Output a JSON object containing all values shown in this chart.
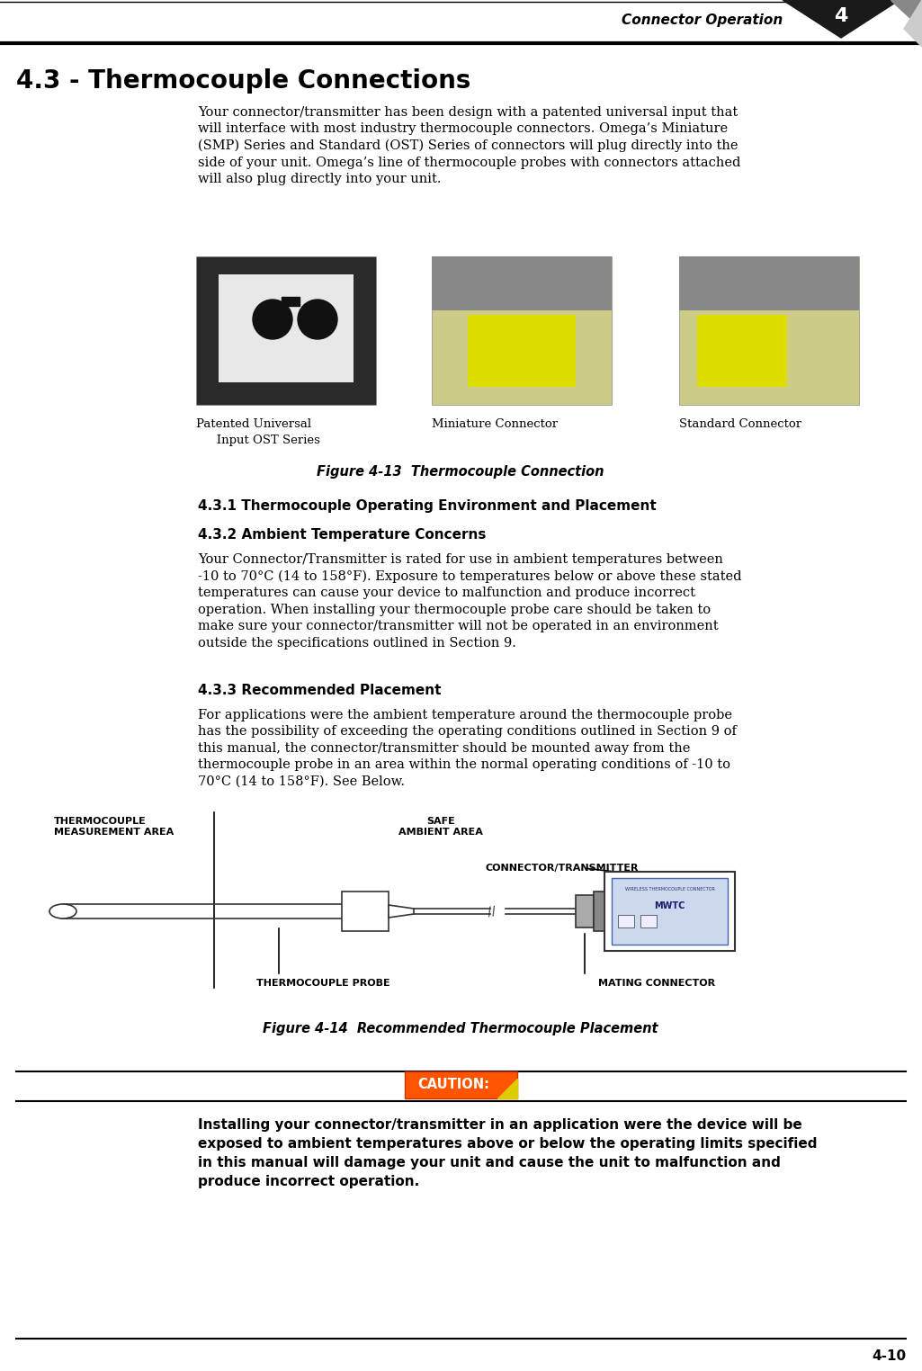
{
  "page_bg": "#ffffff",
  "header_text": "Connector Operation",
  "header_number": "4",
  "title": "4.3 - Thermocouple Connections",
  "body_text_1": "Your connector/transmitter has been design with a patented universal input that\nwill interface with most industry thermocouple connectors. Omega’s Miniature\n(SMP) Series and Standard (OST) Series of connectors will plug directly into the\nside of your unit. Omega’s line of thermocouple probes with connectors attached\nwill also plug directly into your unit.",
  "img_caption_1a": "Patented Universal",
  "img_caption_1b": "   Input OST Series",
  "img_caption_2": "Miniature Connector",
  "img_caption_3": "Standard Connector",
  "figure_caption_1": "Figure 4-13  Thermocouple Connection",
  "section_431": "4.3.1 Thermocouple Operating Environment and Placement",
  "section_432": "4.3.2 Ambient Temperature Concerns",
  "body_text_432": "Your Connector/Transmitter is rated for use in ambient temperatures between\n-10 to 70°C (14 to 158°F). Exposure to temperatures below or above these stated\ntemperatures can cause your device to malfunction and produce incorrect\noperation. When installing your thermocouple probe care should be taken to\nmake sure your connector/transmitter will not be operated in an environment\noutside the specifications outlined in Section 9.",
  "section_433": "4.3.3 Recommended Placement",
  "body_text_433": "For applications were the ambient temperature around the thermocouple probe\nhas the possibility of exceeding the operating conditions outlined in Section 9 of\nthis manual, the connector/transmitter should be mounted away from the\nthermocouple probe in an area within the normal operating conditions of -10 to\n70°C (14 to 158°F). See Below.",
  "diagram_label_1": "THERMOCOUPLE\nMEASUREMENT AREA",
  "diagram_label_2": "SAFE\nAMBIENT AREA",
  "diagram_label_3": "CONNECTOR/TRANSMITTER",
  "diagram_label_4": "THERMOCOUPLE PROBE",
  "diagram_label_5": "MATING CONNECTOR",
  "figure_caption_2": "Figure 4-14  Recommended Thermocouple Placement",
  "caution_text": "CAUTION:",
  "bold_warning": "Installing your connector/transmitter in an application were the device will be\nexposed to ambient temperatures above or below the operating limits specified\nin this manual will damage your unit and cause the unit to malfunction and\nproduce incorrect operation.",
  "page_number": "4-10"
}
